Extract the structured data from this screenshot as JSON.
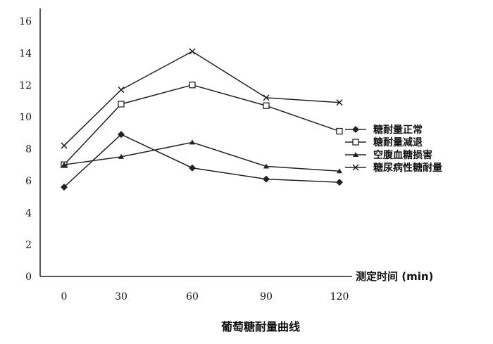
{
  "chart_data": {
    "type": "line",
    "title": "葡萄糖耐量曲线",
    "xlabel": "测定时间 (min)",
    "ylabel": "",
    "categories": [
      "0",
      "30",
      "60",
      "90",
      "120"
    ],
    "ylim": [
      0,
      16
    ],
    "yticks": [
      "0",
      "2",
      "4",
      "6",
      "8",
      "10",
      "12",
      "14",
      "16"
    ],
    "grid": false,
    "legend_position": "right",
    "series": [
      {
        "name": "糖耐量正常",
        "marker": "diamond-filled",
        "values": [
          5.6,
          8.9,
          6.8,
          6.1,
          5.9
        ]
      },
      {
        "name": "糖耐量减退",
        "marker": "square-open",
        "values": [
          7.0,
          10.8,
          12.0,
          10.7,
          9.1
        ]
      },
      {
        "name": "空腹血糖损害",
        "marker": "triangle",
        "values": [
          7.0,
          7.5,
          8.4,
          6.9,
          6.6
        ]
      },
      {
        "name": "糖尿病性糖耐量",
        "marker": "x",
        "values": [
          8.2,
          11.7,
          14.1,
          11.2,
          10.9
        ]
      }
    ],
    "line_color": "#222222"
  }
}
